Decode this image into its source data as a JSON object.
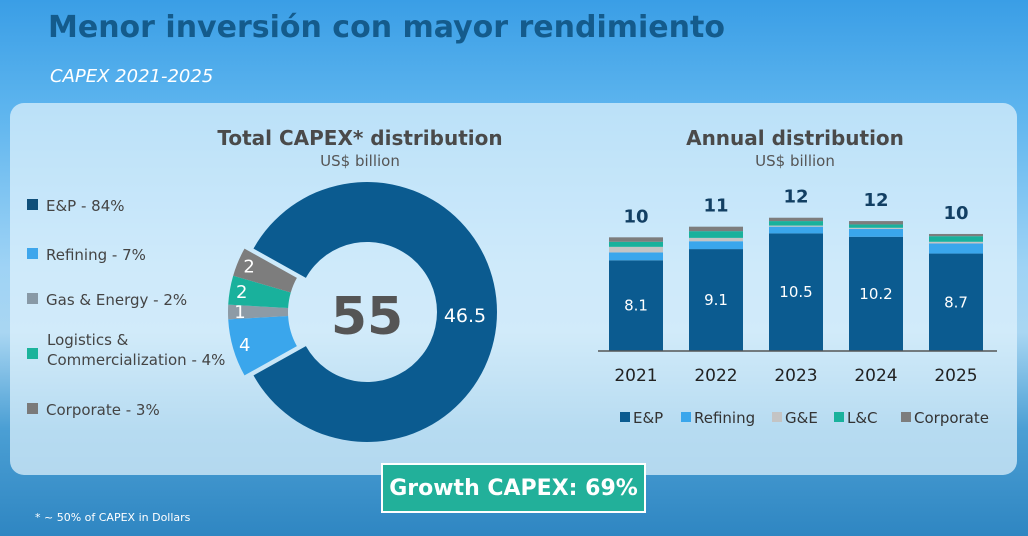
{
  "title": "Menor inversión con mayor rendimiento",
  "subtitle": "CAPEX 2021-2025",
  "footnote": "* ~ 50% of CAPEX in Dollars",
  "growth": "Growth CAPEX: 69%",
  "colors": {
    "E&P": "#0b5b90",
    "Refining": "#3aa6ec",
    "G&E": "#8d9ba6",
    "L&C": "#19b19c",
    "Corporate": "#7d7d7d",
    "G&E_bar": "#c4c4c4"
  },
  "legend_left": [
    {
      "label": "E&P - 84%",
      "color": "#0f4f7a"
    },
    {
      "label": "Refining - 7%",
      "color": "#3ea6ec"
    },
    {
      "label": "Gas & Energy - 2%",
      "color": "#8899a6"
    },
    {
      "label": "Logistics & Commercialization - 4%",
      "line1": "Logistics &",
      "line2": "Commercialization - 4%",
      "color": "#1bb39b"
    },
    {
      "label": "Corporate - 3%",
      "color": "#7a7a7a"
    }
  ],
  "chart_data": [
    {
      "type": "pie",
      "title": "Total CAPEX* distribution",
      "subtitle": "US$ billion",
      "center_label": "55",
      "slices": [
        {
          "name": "E&P",
          "value": 46.5,
          "label": "46.5"
        },
        {
          "name": "Refining",
          "value": 4,
          "label": "4"
        },
        {
          "name": "G&E",
          "value": 1,
          "label": "1"
        },
        {
          "name": "L&C",
          "value": 2,
          "label": "2"
        },
        {
          "name": "Corporate",
          "value": 2,
          "label": "2"
        }
      ]
    },
    {
      "type": "bar",
      "stacked": true,
      "title": "Annual distribution",
      "subtitle": "US$ billion",
      "categories": [
        "2021",
        "2022",
        "2023",
        "2024",
        "2025"
      ],
      "totals": [
        "10",
        "11",
        "12",
        "12",
        "10"
      ],
      "legend_position": "bottom",
      "series": [
        {
          "name": "E&P",
          "values": [
            8.1,
            9.1,
            10.5,
            10.2,
            8.7
          ],
          "labels": [
            "8.1",
            "9.1",
            "10.5",
            "10.2",
            "8.7"
          ]
        },
        {
          "name": "Refining",
          "values": [
            0.7,
            0.7,
            0.6,
            0.7,
            0.9
          ]
        },
        {
          "name": "G&E",
          "values": [
            0.5,
            0.3,
            0.1,
            0.1,
            0.15
          ]
        },
        {
          "name": "L&C",
          "values": [
            0.45,
            0.6,
            0.4,
            0.3,
            0.5
          ]
        },
        {
          "name": "Corporate",
          "values": [
            0.4,
            0.4,
            0.3,
            0.3,
            0.2
          ]
        }
      ]
    }
  ]
}
